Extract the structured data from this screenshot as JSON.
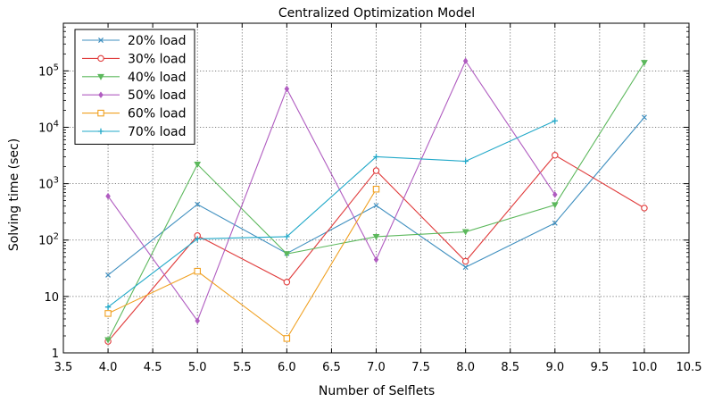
{
  "chart_data": {
    "type": "line",
    "title": "Centralized Optimization Model",
    "xlabel": "Number of Selflets",
    "ylabel": "Solving time (sec)",
    "yscale": "log",
    "xlim": [
      3.5,
      10.5
    ],
    "ylim": [
      1,
      700000
    ],
    "grid": true,
    "legend_position": "top-left",
    "x_ticks": [
      3.5,
      4.0,
      4.5,
      5.0,
      5.5,
      6.0,
      6.5,
      7.0,
      7.5,
      8.0,
      8.5,
      9.0,
      9.5,
      10.0,
      10.5
    ],
    "x_tick_labels": [
      "3.5",
      "4.0",
      "4.5",
      "5.0",
      "5.5",
      "6.0",
      "6.5",
      "7.0",
      "7.5",
      "8.0",
      "8.5",
      "9.0",
      "9.5",
      "10.0",
      "10.5"
    ],
    "y_ticks": [
      {
        "value": 1,
        "base": "1",
        "exp": ""
      },
      {
        "value": 10,
        "base": "10",
        "exp": ""
      },
      {
        "value": 100,
        "base": "10",
        "exp": "2"
      },
      {
        "value": 1000,
        "base": "10",
        "exp": "3"
      },
      {
        "value": 10000,
        "base": "10",
        "exp": "4"
      },
      {
        "value": 100000,
        "base": "10",
        "exp": "5"
      }
    ],
    "series": [
      {
        "name": "20% load",
        "color": "#3f8fbf",
        "marker": "x",
        "points": [
          [
            4,
            24
          ],
          [
            5,
            430
          ],
          [
            6,
            58
          ],
          [
            7,
            410
          ],
          [
            8,
            33
          ],
          [
            9,
            200
          ],
          [
            10,
            15000
          ]
        ]
      },
      {
        "name": "30% load",
        "color": "#e03c3c",
        "marker": "circle",
        "points": [
          [
            4,
            1.6
          ],
          [
            5,
            120
          ],
          [
            6,
            18
          ],
          [
            7,
            1700
          ],
          [
            8,
            42
          ],
          [
            9,
            3200
          ],
          [
            10,
            370
          ]
        ]
      },
      {
        "name": "40% load",
        "color": "#5cb85c",
        "marker": "triangle-down",
        "points": [
          [
            4,
            1.7
          ],
          [
            5,
            2200
          ],
          [
            6,
            57
          ],
          [
            7,
            115
          ],
          [
            8,
            140
          ],
          [
            9,
            420
          ],
          [
            10,
            140000
          ]
        ]
      },
      {
        "name": "50% load",
        "color": "#b05cc0",
        "marker": "diamond",
        "points": [
          [
            4,
            600
          ],
          [
            5,
            3.7
          ],
          [
            6,
            48000
          ],
          [
            7,
            45
          ],
          [
            8,
            150000
          ],
          [
            9,
            640
          ]
        ]
      },
      {
        "name": "60% load",
        "color": "#f0a020",
        "marker": "square",
        "points": [
          [
            4,
            5
          ],
          [
            5,
            28
          ],
          [
            6,
            1.8
          ],
          [
            7,
            800
          ]
        ]
      },
      {
        "name": "70% load",
        "color": "#20a8c8",
        "marker": "plus",
        "points": [
          [
            4,
            6.5
          ],
          [
            5,
            105
          ],
          [
            6,
            115
          ],
          [
            7,
            3000
          ],
          [
            8,
            2500
          ],
          [
            9,
            13000
          ]
        ]
      }
    ]
  }
}
